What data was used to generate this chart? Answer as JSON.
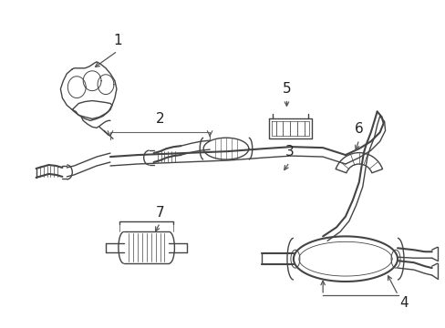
{
  "background_color": "#ffffff",
  "line_color": "#444444",
  "fig_width": 4.89,
  "fig_height": 3.6,
  "dpi": 100
}
